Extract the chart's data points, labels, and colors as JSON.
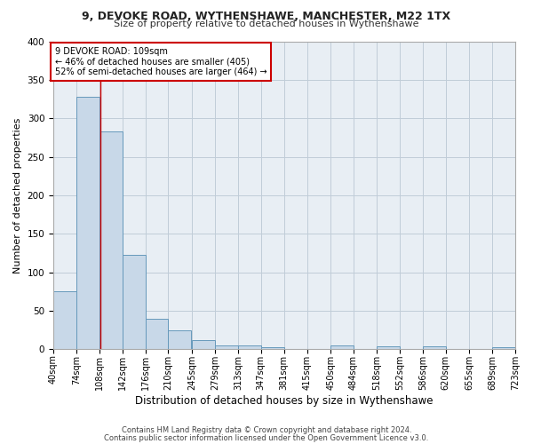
{
  "title1": "9, DEVOKE ROAD, WYTHENSHAWE, MANCHESTER, M22 1TX",
  "title2": "Size of property relative to detached houses in Wythenshawe",
  "xlabel": "Distribution of detached houses by size in Wythenshawe",
  "ylabel": "Number of detached properties",
  "footnote1": "Contains HM Land Registry data © Crown copyright and database right 2024.",
  "footnote2": "Contains public sector information licensed under the Open Government Licence v3.0.",
  "bar_left_edges": [
    40,
    74,
    108,
    142,
    176,
    210,
    245,
    279,
    313,
    347,
    381,
    415,
    450,
    484,
    518,
    552,
    586,
    620,
    655,
    689
  ],
  "bar_heights": [
    75,
    328,
    283,
    123,
    39,
    24,
    12,
    5,
    5,
    3,
    0,
    0,
    5,
    0,
    4,
    0,
    4,
    0,
    0,
    3
  ],
  "bin_width": 34,
  "bar_color": "#c8d8e8",
  "bar_edge_color": "#6699bb",
  "grid_color": "#c0ccd8",
  "bg_color": "#e8eef4",
  "property_line_x": 109,
  "annotation_text1": "9 DEVOKE ROAD: 109sqm",
  "annotation_text2": "← 46% of detached houses are smaller (405)",
  "annotation_text3": "52% of semi-detached houses are larger (464) →",
  "annotation_box_color": "#ffffff",
  "annotation_box_edge": "#cc0000",
  "vline_color": "#cc0000",
  "tick_labels": [
    "40sqm",
    "74sqm",
    "108sqm",
    "142sqm",
    "176sqm",
    "210sqm",
    "245sqm",
    "279sqm",
    "313sqm",
    "347sqm",
    "381sqm",
    "415sqm",
    "450sqm",
    "484sqm",
    "518sqm",
    "552sqm",
    "586sqm",
    "620sqm",
    "655sqm",
    "689sqm",
    "723sqm"
  ],
  "ylim": [
    0,
    400
  ],
  "yticks": [
    0,
    50,
    100,
    150,
    200,
    250,
    300,
    350,
    400
  ],
  "title1_fontsize": 9.0,
  "title2_fontsize": 8.0,
  "ylabel_fontsize": 8.0,
  "xlabel_fontsize": 8.5,
  "footnote_fontsize": 6.0,
  "tick_fontsize": 7.0,
  "ytick_fontsize": 7.5,
  "ann_fontsize": 7.0
}
